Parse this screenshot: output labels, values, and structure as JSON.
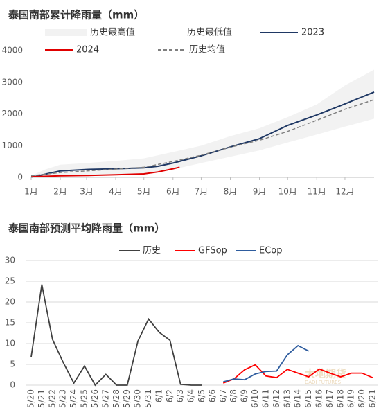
{
  "chart_data": [
    {
      "type": "line",
      "title": "泰国南部累计降雨量（mm）",
      "xlim": [
        0,
        365
      ],
      "xticks": [
        {
          "value": 0,
          "label": "1月"
        },
        {
          "value": 31,
          "label": "2月"
        },
        {
          "value": 59,
          "label": "3月"
        },
        {
          "value": 90,
          "label": "4月"
        },
        {
          "value": 120,
          "label": "5月"
        },
        {
          "value": 151,
          "label": "6月"
        },
        {
          "value": 181,
          "label": "7月"
        },
        {
          "value": 212,
          "label": "8月"
        },
        {
          "value": 243,
          "label": "9月"
        },
        {
          "value": 273,
          "label": "10月"
        },
        {
          "value": 304,
          "label": "11月"
        },
        {
          "value": 334,
          "label": "12月"
        }
      ],
      "ylim": [
        0,
        4000
      ],
      "yticks": [
        0,
        1000,
        2000,
        3000,
        4000
      ],
      "watermark": "大地期货",
      "watermark_sub": "DADI FUTURES",
      "series": [
        {
          "name": "历史最高值",
          "style": "area",
          "color": "#f2f2f2",
          "x": [
            0,
            15,
            31,
            59,
            90,
            120,
            151,
            181,
            212,
            243,
            273,
            304,
            334,
            365
          ],
          "values": [
            50,
            250,
            400,
            450,
            520,
            600,
            800,
            1000,
            1300,
            1550,
            1900,
            2300,
            2900,
            3400
          ]
        },
        {
          "name": "历史最低值",
          "style": "area",
          "color": "#ffffff",
          "x": [
            0,
            15,
            31,
            59,
            90,
            120,
            151,
            181,
            212,
            243,
            273,
            304,
            334,
            365
          ],
          "values": [
            0,
            5,
            20,
            40,
            60,
            100,
            250,
            450,
            650,
            850,
            1100,
            1350,
            1600,
            1850
          ]
        },
        {
          "name": "2023",
          "style": "line",
          "color": "#1f3864",
          "x": [
            0,
            15,
            31,
            59,
            90,
            120,
            135,
            151,
            181,
            212,
            243,
            273,
            304,
            334,
            365
          ],
          "values": [
            0,
            100,
            200,
            250,
            270,
            300,
            350,
            450,
            680,
            960,
            1220,
            1640,
            1970,
            2320,
            2690
          ]
        },
        {
          "name": "2024",
          "style": "line",
          "color": "#e00000",
          "x": [
            0,
            31,
            59,
            90,
            120,
            135,
            151,
            158
          ],
          "values": [
            20,
            50,
            60,
            80,
            110,
            170,
            270,
            320
          ]
        },
        {
          "name": "历史均值",
          "style": "dashed",
          "color": "#7f7f7f",
          "x": [
            0,
            31,
            59,
            90,
            120,
            151,
            181,
            212,
            243,
            273,
            304,
            334,
            365
          ],
          "values": [
            50,
            150,
            200,
            260,
            320,
            500,
            700,
            950,
            1170,
            1450,
            1800,
            2150,
            2450
          ]
        }
      ]
    },
    {
      "type": "line",
      "title": "泰国南部预测平均降雨量（mm）",
      "categories": [
        "5/20",
        "5/21",
        "5/22",
        "5/23",
        "5/24",
        "5/25",
        "5/26",
        "5/27",
        "5/28",
        "5/29",
        "5/30",
        "5/31",
        "6/1",
        "6/2",
        "6/3",
        "6/4",
        "6/5",
        "6/6",
        "6/7",
        "6/8",
        "6/9",
        "6/10",
        "6/11",
        "6/12",
        "6/13",
        "6/14",
        "6/15",
        "6/16",
        "6/17",
        "6/18",
        "6/19",
        "6/20",
        "6/21"
      ],
      "ylim": [
        0,
        30
      ],
      "yticks": [
        0,
        5,
        10,
        15,
        20,
        25,
        30
      ],
      "grid": true,
      "watermark": "大地期货",
      "watermark_sub": "DADI FUTURES",
      "series": [
        {
          "name": "历史",
          "color": "#404040",
          "values": [
            6.8,
            24.2,
            11,
            5.5,
            0.5,
            4.6,
            0,
            2.6,
            0,
            0,
            10.6,
            15.9,
            12.7,
            10.8,
            0.2,
            0,
            0,
            null,
            null,
            null,
            null,
            null,
            null,
            null,
            null,
            null,
            null,
            null,
            null,
            null,
            null,
            null,
            null
          ]
        },
        {
          "name": "GFSop",
          "color": "#ff0000",
          "values": [
            null,
            null,
            null,
            null,
            null,
            null,
            null,
            null,
            null,
            null,
            null,
            null,
            null,
            null,
            null,
            null,
            null,
            null,
            0.5,
            1.5,
            3.7,
            4.9,
            2.2,
            1.8,
            3.8,
            2.9,
            2.0,
            3.9,
            2.9,
            2.0,
            2.9,
            2.9,
            1.8
          ]
        },
        {
          "name": "ECop",
          "color": "#2e5c9e",
          "values": [
            null,
            null,
            null,
            null,
            null,
            null,
            null,
            null,
            null,
            null,
            null,
            null,
            null,
            null,
            null,
            null,
            null,
            null,
            0.8,
            1.5,
            1.3,
            2.7,
            3.3,
            3.4,
            7.3,
            9.5,
            8.2,
            null,
            null,
            null,
            null,
            null,
            null
          ]
        }
      ]
    }
  ]
}
